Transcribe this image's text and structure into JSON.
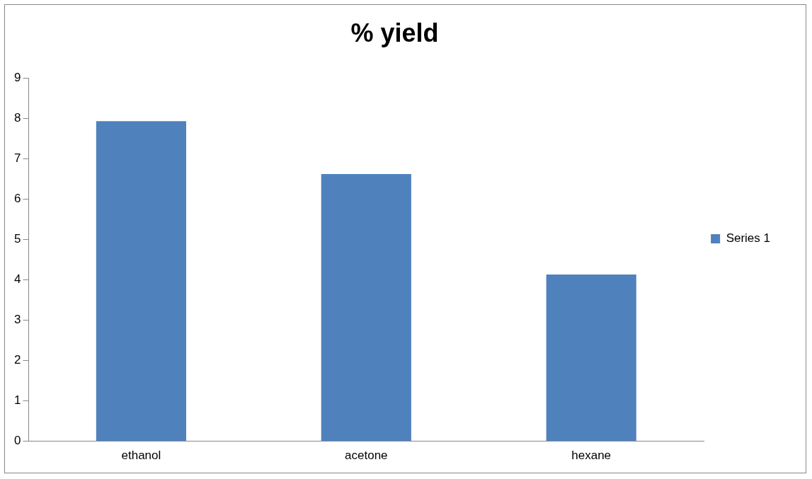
{
  "chart_data": {
    "type": "bar",
    "title": "% yield",
    "categories": [
      "ethanol",
      "acetone",
      "hexane"
    ],
    "series": [
      {
        "name": "Series 1",
        "color": "#4f81bd",
        "values": [
          7.93,
          6.62,
          4.13
        ]
      }
    ],
    "ylim": [
      0,
      9
    ],
    "yticks": [
      0,
      1,
      2,
      3,
      4,
      5,
      6,
      7,
      8,
      9
    ],
    "grid": false,
    "legend": "right"
  }
}
